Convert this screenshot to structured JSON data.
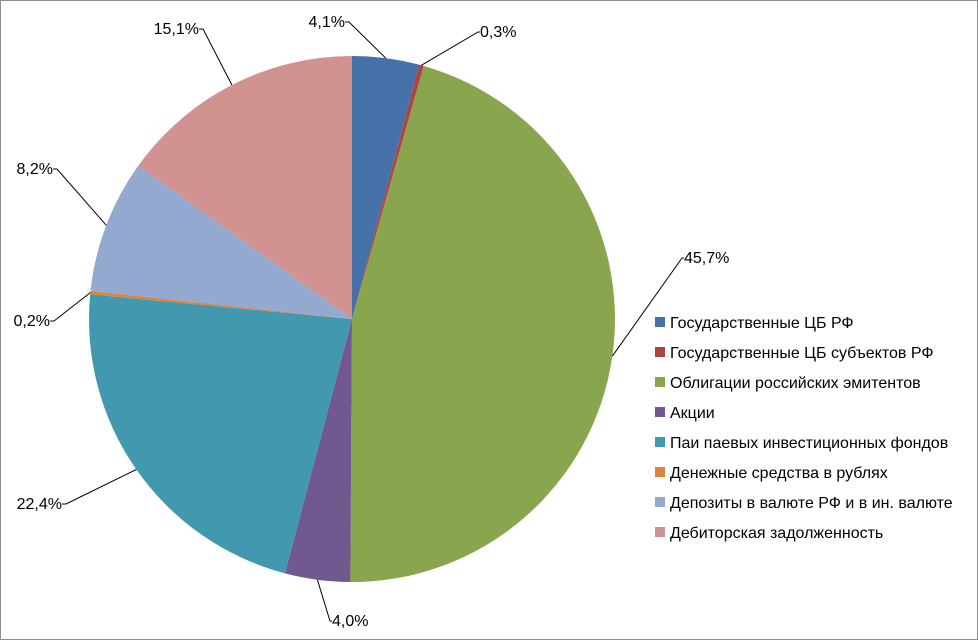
{
  "chart_data": {
    "type": "pie",
    "title": "",
    "legend_position": "right",
    "label_format": "{value}%",
    "decimal_separator": ",",
    "start_angle_deg": 0,
    "direction": "clockwise",
    "categories": [
      "Государственные ЦБ РФ",
      "Государственные ЦБ субъектов РФ",
      "Облигации российских эмитентов",
      "Акции",
      "Паи паевых инвестиционных фондов",
      "Денежные средства в рублях",
      "Депозиты в валюте РФ и в ин. валюте",
      "Дебиторская задолженность"
    ],
    "values": [
      4.1,
      0.3,
      45.7,
      4.0,
      22.4,
      0.2,
      8.2,
      15.1
    ],
    "colors": [
      "#4571a9",
      "#aa4643",
      "#89a54e",
      "#71588f",
      "#4198af",
      "#db843d",
      "#93a9cf",
      "#d19392"
    ]
  }
}
